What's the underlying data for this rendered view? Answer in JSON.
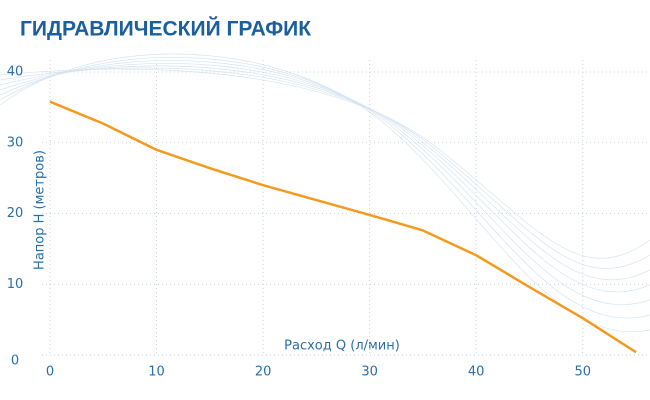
{
  "chart_data": {
    "type": "line",
    "title": "ГИДРАВЛИЧЕСКИЙ ГРАФИК",
    "x_label": "Расход Q (л/мин)",
    "y_label": "Напор H (метров)",
    "x": [
      0,
      5,
      10,
      15,
      20,
      25,
      30,
      35,
      40,
      45,
      50,
      55
    ],
    "series": [
      {
        "name": "Напор",
        "color": "#f39a1f",
        "values": [
          35.8,
          32.7,
          29.0,
          26.4,
          24.0,
          21.9,
          19.8,
          17.6,
          14.1,
          9.6,
          5.2,
          0.4
        ]
      }
    ],
    "xlim": [
      0,
      55
    ],
    "ylim": [
      0,
      40
    ],
    "xticks": [
      0,
      10,
      20,
      30,
      40,
      50
    ],
    "yticks": [
      0,
      10,
      20,
      30,
      40
    ],
    "grid": true
  }
}
